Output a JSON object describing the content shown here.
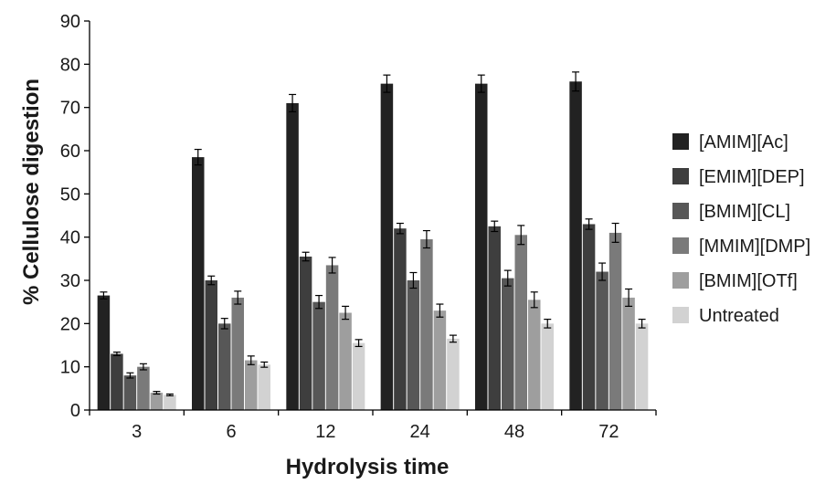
{
  "chart_data": {
    "type": "bar",
    "title": "",
    "xlabel": "Hydrolysis time",
    "ylabel": "% Cellulose digestion",
    "ylim": [
      0,
      90
    ],
    "yticks": [
      0,
      10,
      20,
      30,
      40,
      50,
      60,
      70,
      80,
      90
    ],
    "grid": false,
    "legend_position": "right",
    "categories": [
      "3",
      "6",
      "12",
      "24",
      "48",
      "72"
    ],
    "series": [
      {
        "name": "[AMIM][Ac]",
        "color": "#222222",
        "values": [
          26.5,
          58.5,
          71,
          75.5,
          75.5,
          76
        ],
        "errors": [
          0.8,
          1.8,
          2,
          2,
          2,
          2.2
        ]
      },
      {
        "name": "[EMIM][DEP]",
        "color": "#3e3e3e",
        "values": [
          13,
          30,
          35.5,
          42,
          42.5,
          43
        ],
        "errors": [
          0.4,
          1,
          1,
          1.2,
          1.2,
          1.2
        ]
      },
      {
        "name": "[BMIM][CL]",
        "color": "#575757",
        "values": [
          8,
          20,
          25,
          30,
          30.5,
          32
        ],
        "errors": [
          0.6,
          1.2,
          1.5,
          1.8,
          1.8,
          2
        ]
      },
      {
        "name": "[MMIM][DMP]",
        "color": "#7a7a7a",
        "values": [
          10,
          26,
          33.5,
          39.5,
          40.5,
          41
        ],
        "errors": [
          0.7,
          1.5,
          1.8,
          2,
          2.2,
          2.2
        ]
      },
      {
        "name": "[BMIM][OTf]",
        "color": "#9e9e9e",
        "values": [
          4,
          11.5,
          22.5,
          23,
          25.5,
          26
        ],
        "errors": [
          0.3,
          1,
          1.5,
          1.5,
          1.8,
          2
        ]
      },
      {
        "name": "Untreated",
        "color": "#d2d2d2",
        "values": [
          3.5,
          10.5,
          15.5,
          16.5,
          20,
          20
        ],
        "errors": [
          0.2,
          0.6,
          0.8,
          0.8,
          1,
          1
        ]
      }
    ]
  }
}
